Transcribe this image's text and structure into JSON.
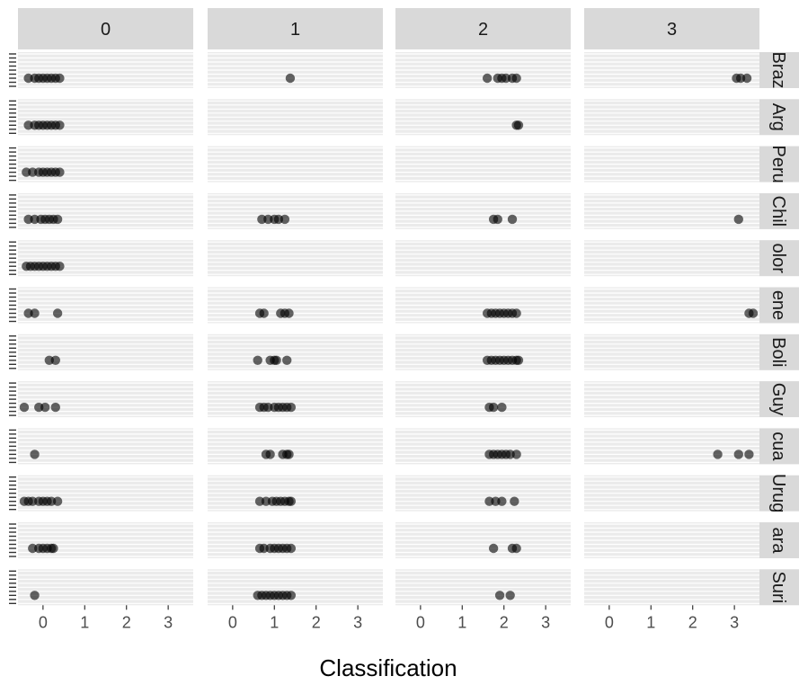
{
  "chart_data": {
    "type": "scatter",
    "title": "",
    "xlabel": "Classification",
    "ylabel": "",
    "facet_cols": [
      "0",
      "1",
      "2",
      "3"
    ],
    "facet_rows": [
      "Braz",
      "Arg",
      "Peru",
      "Chil",
      "olor",
      "ene",
      "Boli",
      "Guy",
      "cua",
      "Urug",
      "ara",
      "Suri"
    ],
    "x_ticks": [
      0,
      1,
      2,
      3
    ],
    "xlim": [
      -0.6,
      3.6
    ],
    "grid": true,
    "legend": "none",
    "point_color": "#000000",
    "points": [
      [
        [
          -0.35,
          -0.2,
          -0.1,
          0.0,
          0.1,
          0.2,
          0.3,
          0.4
        ],
        [
          1.38
        ],
        [
          1.6,
          1.85,
          1.95,
          2.05,
          2.2,
          2.3
        ],
        [
          3.05,
          3.15,
          3.3
        ]
      ],
      [
        [
          -0.35,
          -0.2,
          -0.1,
          0.0,
          0.1,
          0.2,
          0.3,
          0.4
        ],
        [],
        [
          2.3,
          2.35
        ],
        []
      ],
      [
        [
          -0.4,
          -0.25,
          -0.1,
          0.0,
          0.1,
          0.2,
          0.3,
          0.4
        ],
        [],
        [],
        []
      ],
      [
        [
          -0.35,
          -0.2,
          -0.05,
          0.05,
          0.15,
          0.25,
          0.35
        ],
        [
          0.7,
          0.85,
          1.0,
          1.1,
          1.25
        ],
        [
          1.75,
          1.85,
          2.2
        ],
        [
          3.1
        ]
      ],
      [
        [
          -0.4,
          -0.3,
          -0.2,
          -0.1,
          0.0,
          0.1,
          0.2,
          0.3,
          0.4
        ],
        [],
        [],
        []
      ],
      [
        [
          -0.35,
          -0.2,
          0.35
        ],
        [
          0.65,
          0.75,
          1.15,
          1.25,
          1.35
        ],
        [
          1.6,
          1.7,
          1.8,
          1.9,
          2.0,
          2.1,
          2.2,
          2.3
        ],
        [
          3.35,
          3.45
        ]
      ],
      [
        [
          0.15,
          0.3
        ],
        [
          0.6,
          0.9,
          1.0,
          1.05,
          1.3
        ],
        [
          1.6,
          1.7,
          1.8,
          1.9,
          2.0,
          2.1,
          2.2,
          2.3,
          2.35
        ],
        []
      ],
      [
        [
          -0.45,
          -0.1,
          0.05,
          0.3
        ],
        [
          0.65,
          0.75,
          0.85,
          1.0,
          1.1,
          1.2,
          1.3,
          1.4
        ],
        [
          1.65,
          1.75,
          1.95
        ],
        []
      ],
      [
        [
          -0.2
        ],
        [
          0.8,
          0.9,
          1.2,
          1.3,
          1.35
        ],
        [
          1.65,
          1.75,
          1.85,
          1.95,
          2.05,
          2.15,
          2.3
        ],
        [
          2.6,
          3.1,
          3.35
        ]
      ],
      [
        [
          -0.45,
          -0.35,
          -0.25,
          -0.1,
          0.0,
          0.1,
          0.2,
          0.35
        ],
        [
          0.65,
          0.8,
          0.95,
          1.05,
          1.15,
          1.25,
          1.35,
          1.4
        ],
        [
          1.65,
          1.8,
          1.95,
          2.25
        ],
        []
      ],
      [
        [
          -0.25,
          -0.1,
          0.0,
          0.1,
          0.2,
          0.25
        ],
        [
          0.65,
          0.75,
          0.9,
          1.0,
          1.1,
          1.2,
          1.3,
          1.4
        ],
        [
          1.75,
          2.2,
          2.3
        ],
        []
      ],
      [
        [
          -0.2
        ],
        [
          0.6,
          0.7,
          0.8,
          0.9,
          1.0,
          1.1,
          1.2,
          1.3,
          1.4
        ],
        [
          1.9,
          2.15
        ],
        []
      ]
    ]
  }
}
